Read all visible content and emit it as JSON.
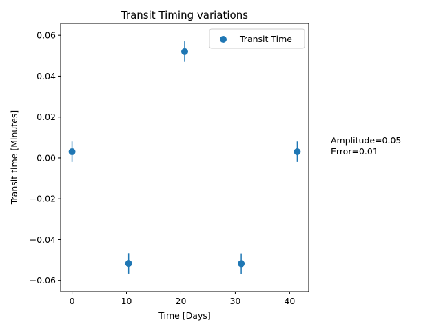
{
  "chart_data": {
    "type": "scatter",
    "title": "Transit Timing variations",
    "xlabel": "Time [Days]",
    "ylabel": "Transit time [Minutes]",
    "xlim": [
      -2.1,
      43.5
    ],
    "ylim": [
      -0.0655,
      0.0658
    ],
    "xticks": [
      0,
      10,
      20,
      30,
      40
    ],
    "yticks": [
      -0.06,
      -0.04,
      -0.02,
      0.0,
      0.02,
      0.04,
      0.06
    ],
    "xtick_labels": [
      "0",
      "10",
      "20",
      "30",
      "40"
    ],
    "ytick_labels": [
      "−0.06",
      "−0.04",
      "−0.02",
      "0.00",
      "0.02",
      "0.04",
      "0.06"
    ],
    "grid": false,
    "legend_position": "top-right",
    "series": [
      {
        "name": "Transit Time",
        "color": "#1f77b4",
        "marker": "circle",
        "x": [
          0.0,
          10.4,
          20.7,
          31.1,
          41.4
        ],
        "y": [
          0.003,
          -0.0517,
          0.052,
          -0.0518,
          0.003
        ],
        "yerr": [
          0.005,
          0.005,
          0.005,
          0.005,
          0.005
        ]
      }
    ],
    "annotations": [
      "Amplitude=0.05",
      "Error=0.01"
    ]
  }
}
